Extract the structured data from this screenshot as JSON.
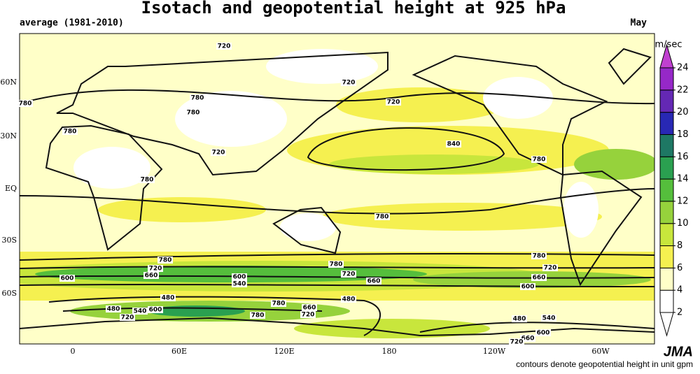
{
  "header": {
    "title": "Isotach and geopotential height at 925 hPa",
    "period": "average (1981-2010)",
    "month": "May"
  },
  "map": {
    "lat_labels": [
      "60N",
      "30N",
      "EQ",
      "30S",
      "60S"
    ],
    "lon_labels": [
      "0",
      "60E",
      "120E",
      "180",
      "120W",
      "60W"
    ],
    "contour_labels": [
      "720",
      "780",
      "720",
      "720",
      "780",
      "780",
      "780",
      "720",
      "840",
      "780",
      "780",
      "780",
      "780",
      "720",
      "660",
      "600",
      "780",
      "720",
      "660",
      "780",
      "720",
      "660",
      "600",
      "600",
      "540",
      "480",
      "480",
      "780",
      "660",
      "720",
      "480",
      "540",
      "600",
      "720",
      "780",
      "480",
      "540",
      "600",
      "660",
      "720"
    ]
  },
  "colorbar": {
    "unit": "m/sec",
    "ticks": [
      2,
      4,
      6,
      8,
      10,
      12,
      14,
      16,
      18,
      20,
      22,
      24
    ],
    "colors": [
      "#ffffff",
      "#ffffff",
      "#ffffc8",
      "#f5f050",
      "#c8e63c",
      "#96d23c",
      "#55be3c",
      "#2aa050",
      "#1e7864",
      "#2828b4",
      "#6428b4",
      "#9628c8",
      "#c040d0"
    ]
  },
  "footer": {
    "note": "contours denote geopotential height in unit gpm",
    "logo": "JMA"
  }
}
